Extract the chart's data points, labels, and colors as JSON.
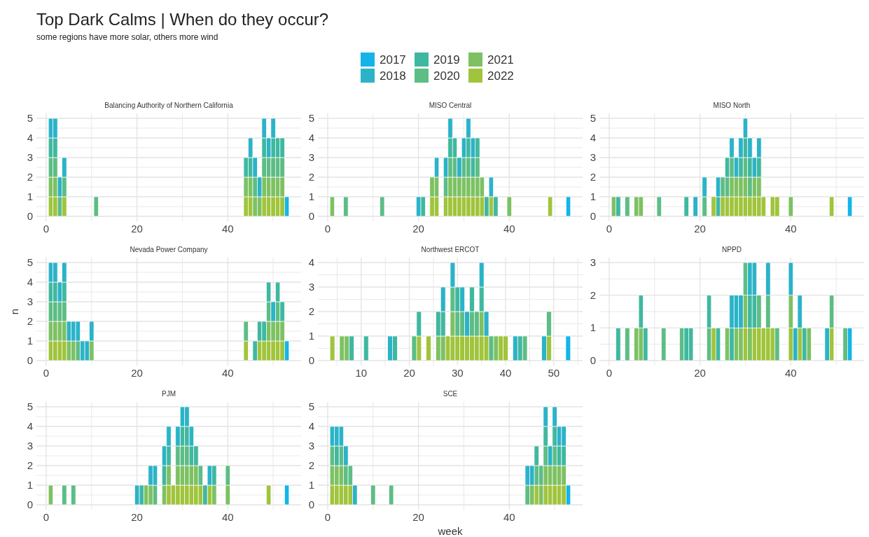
{
  "chart_data": [
    {
      "type": "bar",
      "stacked": true,
      "title": "Balancing Authority of Northern California",
      "annotations": [
        "Top Dark Calms | When do they occur?",
        "some regions have more solar, others more wind"
      ],
      "legend": "top",
      "grid": true,
      "x": [
        1,
        2,
        3,
        4,
        11,
        44,
        45,
        46,
        47,
        48,
        49,
        50,
        51,
        52,
        53
      ],
      "xlim": [
        -2.15,
        56.15
      ],
      "xticks": [
        0,
        {
          "value": 10,
          "label": null
        },
        20,
        {
          "value": 30,
          "label": null
        },
        40,
        {
          "value": 50,
          "label": null
        }
      ],
      "ylim": [
        -0.25,
        5.25
      ],
      "yticks": [
        0,
        {
          "value": 0.5,
          "label": null
        },
        1,
        {
          "value": 1.5,
          "label": null
        },
        2,
        {
          "value": 2.5,
          "label": null
        },
        3,
        {
          "value": 3.5,
          "label": null
        },
        4,
        {
          "value": 4.5,
          "label": null
        },
        5
      ],
      "series": [
        {
          "name": "2022",
          "color": "#a0c43c",
          "values": [
            1,
            1,
            0,
            1,
            0,
            1,
            1,
            0,
            0,
            1,
            1,
            1,
            1,
            1,
            0
          ]
        },
        {
          "name": "2021",
          "color": "#7dc163",
          "values": [
            1,
            1,
            0,
            0,
            0,
            1,
            1,
            1,
            1,
            1,
            1,
            1,
            1,
            1,
            0
          ]
        },
        {
          "name": "2020",
          "color": "#5dbd85",
          "values": [
            1,
            1,
            1,
            1,
            1,
            0,
            0,
            1,
            0,
            1,
            1,
            1,
            1,
            1,
            0
          ]
        },
        {
          "name": "2019",
          "color": "#40b8a0",
          "values": [
            1,
            1,
            0,
            0,
            0,
            1,
            1,
            0,
            0,
            1,
            0,
            1,
            1,
            1,
            0
          ]
        },
        {
          "name": "2018",
          "color": "#2bb3c8",
          "values": [
            1,
            1,
            1,
            1,
            0,
            0,
            1,
            1,
            1,
            1,
            1,
            1,
            0,
            0,
            0
          ]
        },
        {
          "name": "2017",
          "color": "#14b4e8",
          "values": [
            0,
            0,
            0,
            0,
            0,
            0,
            0,
            0,
            0,
            0,
            0,
            0,
            0,
            0,
            1
          ]
        }
      ]
    },
    {
      "type": "bar",
      "stacked": true,
      "title": "MISO Central",
      "grid": true,
      "x": [
        1,
        4,
        12,
        20,
        21,
        23,
        24,
        26,
        27,
        28,
        29,
        30,
        31,
        32,
        33,
        34,
        35,
        36,
        37,
        40,
        49,
        53
      ],
      "xlim": [
        -2.15,
        56.15
      ],
      "xticks": [
        0,
        {
          "value": 10,
          "label": null
        },
        20,
        {
          "value": 30,
          "label": null
        },
        40,
        {
          "value": 50,
          "label": null
        }
      ],
      "ylim": [
        -0.25,
        5.25
      ],
      "yticks": [
        0,
        {
          "value": 0.5,
          "label": null
        },
        1,
        {
          "value": 1.5,
          "label": null
        },
        2,
        {
          "value": 2.5,
          "label": null
        },
        3,
        {
          "value": 3.5,
          "label": null
        },
        4,
        {
          "value": 4.5,
          "label": null
        },
        5
      ],
      "series": [
        {
          "name": "2022",
          "color": "#a0c43c",
          "values": [
            0,
            0,
            0,
            0,
            0,
            1,
            1,
            1,
            1,
            1,
            1,
            1,
            1,
            1,
            1,
            1,
            0,
            1,
            0,
            0,
            1,
            0
          ]
        },
        {
          "name": "2021",
          "color": "#7dc163",
          "values": [
            1,
            0,
            0,
            0,
            0,
            1,
            1,
            0,
            1,
            1,
            1,
            1,
            1,
            1,
            1,
            1,
            0,
            0,
            0,
            1,
            0,
            0
          ]
        },
        {
          "name": "2020",
          "color": "#5dbd85",
          "values": [
            0,
            1,
            1,
            0,
            0,
            0,
            0,
            1,
            1,
            1,
            0,
            1,
            1,
            0,
            1,
            0,
            0,
            0,
            0,
            0,
            0,
            0
          ]
        },
        {
          "name": "2019",
          "color": "#40b8a0",
          "values": [
            0,
            0,
            0,
            0,
            1,
            0,
            0,
            0,
            1,
            1,
            0,
            0,
            1,
            1,
            1,
            0,
            1,
            0,
            1,
            0,
            0,
            0
          ]
        },
        {
          "name": "2018",
          "color": "#2bb3c8",
          "values": [
            0,
            0,
            0,
            1,
            0,
            0,
            1,
            1,
            1,
            0,
            1,
            1,
            1,
            1,
            0,
            0,
            0,
            1,
            0,
            0,
            0,
            0
          ]
        },
        {
          "name": "2017",
          "color": "#14b4e8",
          "values": [
            0,
            0,
            0,
            0,
            0,
            0,
            0,
            0,
            0,
            0,
            0,
            0,
            0,
            0,
            0,
            0,
            0,
            0,
            0,
            0,
            0,
            1
          ]
        }
      ]
    },
    {
      "type": "bar",
      "stacked": true,
      "title": "MISO North",
      "grid": true,
      "x": [
        1,
        2,
        4,
        6,
        7,
        11,
        17,
        19,
        21,
        23,
        24,
        25,
        26,
        27,
        28,
        29,
        30,
        31,
        32,
        33,
        34,
        36,
        37,
        40,
        49,
        53
      ],
      "xlim": [
        -2.15,
        56.15
      ],
      "xticks": [
        0,
        {
          "value": 10,
          "label": null
        },
        20,
        {
          "value": 30,
          "label": null
        },
        40,
        {
          "value": 50,
          "label": null
        }
      ],
      "ylim": [
        -0.25,
        5.25
      ],
      "yticks": [
        0,
        {
          "value": 0.5,
          "label": null
        },
        1,
        {
          "value": 1.5,
          "label": null
        },
        2,
        {
          "value": 2.5,
          "label": null
        },
        3,
        {
          "value": 3.5,
          "label": null
        },
        4,
        {
          "value": 4.5,
          "label": null
        },
        5
      ],
      "series": [
        {
          "name": "2022",
          "color": "#a0c43c",
          "values": [
            0,
            0,
            0,
            0,
            0,
            0,
            0,
            0,
            0,
            1,
            0,
            1,
            1,
            1,
            1,
            1,
            1,
            1,
            1,
            1,
            1,
            1,
            1,
            0,
            1,
            0
          ]
        },
        {
          "name": "2021",
          "color": "#7dc163",
          "values": [
            1,
            0,
            0,
            1,
            1,
            0,
            0,
            0,
            0,
            0,
            0,
            0,
            0,
            1,
            1,
            1,
            1,
            0,
            1,
            1,
            0,
            0,
            0,
            1,
            0,
            0
          ]
        },
        {
          "name": "2020",
          "color": "#5dbd85",
          "values": [
            0,
            0,
            1,
            0,
            0,
            1,
            0,
            0,
            1,
            0,
            0,
            1,
            1,
            1,
            0,
            0,
            1,
            1,
            0,
            0,
            0,
            0,
            0,
            0,
            0,
            0
          ]
        },
        {
          "name": "2019",
          "color": "#40b8a0",
          "values": [
            0,
            1,
            0,
            0,
            0,
            0,
            1,
            0,
            0,
            0,
            1,
            0,
            1,
            0,
            0,
            1,
            1,
            1,
            0,
            1,
            0,
            0,
            0,
            0,
            0,
            0
          ]
        },
        {
          "name": "2018",
          "color": "#2bb3c8",
          "values": [
            0,
            0,
            0,
            0,
            0,
            0,
            0,
            1,
            1,
            0,
            1,
            0,
            0,
            1,
            1,
            1,
            1,
            1,
            1,
            1,
            0,
            0,
            0,
            0,
            0,
            0
          ]
        },
        {
          "name": "2017",
          "color": "#14b4e8",
          "values": [
            0,
            0,
            0,
            0,
            0,
            0,
            0,
            0,
            0,
            0,
            0,
            0,
            0,
            0,
            0,
            0,
            0,
            0,
            0,
            0,
            0,
            0,
            0,
            0,
            0,
            1
          ]
        }
      ]
    },
    {
      "type": "bar",
      "stacked": true,
      "title": "Nevada Power Company",
      "ylabel": "n",
      "grid": true,
      "x": [
        1,
        2,
        3,
        4,
        5,
        6,
        7,
        8,
        9,
        10,
        44,
        46,
        47,
        48,
        49,
        50,
        51,
        52,
        53
      ],
      "xlim": [
        -2.15,
        56.15
      ],
      "xticks": [
        0,
        {
          "value": 10,
          "label": null
        },
        20,
        {
          "value": 30,
          "label": null
        },
        40,
        {
          "value": 50,
          "label": null
        }
      ],
      "ylim": [
        -0.25,
        5.25
      ],
      "yticks": [
        0,
        {
          "value": 0.5,
          "label": null
        },
        1,
        {
          "value": 1.5,
          "label": null
        },
        2,
        {
          "value": 2.5,
          "label": null
        },
        3,
        {
          "value": 3.5,
          "label": null
        },
        4,
        {
          "value": 4.5,
          "label": null
        },
        5
      ],
      "series": [
        {
          "name": "2022",
          "color": "#a0c43c",
          "values": [
            1,
            1,
            1,
            1,
            0,
            0,
            0,
            0,
            0,
            0,
            1,
            0,
            1,
            1,
            1,
            1,
            1,
            1,
            0
          ]
        },
        {
          "name": "2021",
          "color": "#7dc163",
          "values": [
            1,
            1,
            1,
            1,
            1,
            1,
            0,
            0,
            0,
            1,
            0,
            0,
            0,
            0,
            1,
            1,
            1,
            1,
            0
          ]
        },
        {
          "name": "2020",
          "color": "#5dbd85",
          "values": [
            1,
            1,
            1,
            1,
            0,
            0,
            1,
            0,
            0,
            0,
            1,
            0,
            0,
            0,
            1,
            0,
            1,
            0,
            0
          ]
        },
        {
          "name": "2019",
          "color": "#40b8a0",
          "values": [
            1,
            1,
            0,
            1,
            0,
            0,
            0,
            0,
            0,
            0,
            0,
            1,
            1,
            1,
            1,
            0,
            1,
            1,
            0
          ]
        },
        {
          "name": "2018",
          "color": "#2bb3c8",
          "values": [
            1,
            1,
            1,
            1,
            1,
            1,
            1,
            1,
            1,
            1,
            0,
            0,
            0,
            0,
            0,
            1,
            0,
            0,
            0
          ]
        },
        {
          "name": "2017",
          "color": "#14b4e8",
          "values": [
            0,
            0,
            0,
            0,
            0,
            0,
            0,
            0,
            0,
            0,
            0,
            0,
            0,
            0,
            0,
            0,
            0,
            0,
            1
          ]
        }
      ]
    },
    {
      "type": "bar",
      "stacked": true,
      "title": "Northwest ERCOT",
      "grid": true,
      "x": [
        4,
        6,
        7,
        8,
        11,
        16,
        17,
        21,
        22,
        24,
        26,
        27,
        28,
        29,
        30,
        31,
        32,
        33,
        34,
        35,
        36,
        37,
        38,
        39,
        40,
        42,
        43,
        44,
        48,
        49,
        53
      ],
      "xlim": [
        1,
        56
      ],
      "xticks": [
        {
          "value": 5,
          "label": null
        },
        10,
        {
          "value": 15,
          "label": null
        },
        20,
        {
          "value": 25,
          "label": null
        },
        30,
        {
          "value": 35,
          "label": null
        },
        40,
        {
          "value": 45,
          "label": null
        },
        50,
        {
          "value": 55,
          "label": null
        }
      ],
      "ylim": [
        -0.2,
        4.2
      ],
      "yticks": [
        0,
        {
          "value": 0.5,
          "label": null
        },
        1,
        {
          "value": 1.5,
          "label": null
        },
        2,
        {
          "value": 2.5,
          "label": null
        },
        3,
        {
          "value": 3.5,
          "label": null
        },
        4
      ],
      "series": [
        {
          "name": "2022",
          "color": "#a0c43c",
          "values": [
            1,
            0,
            0,
            0,
            0,
            0,
            0,
            0,
            1,
            1,
            0,
            0,
            1,
            1,
            1,
            1,
            1,
            1,
            1,
            1,
            1,
            0,
            0,
            1,
            1,
            0,
            0,
            0,
            0,
            1,
            0
          ]
        },
        {
          "name": "2021",
          "color": "#7dc163",
          "values": [
            0,
            1,
            1,
            0,
            0,
            0,
            0,
            0,
            0,
            0,
            1,
            1,
            0,
            1,
            0,
            0,
            0,
            0,
            0,
            1,
            0,
            0,
            1,
            0,
            0,
            0,
            0,
            0,
            0,
            0,
            0
          ]
        },
        {
          "name": "2020",
          "color": "#5dbd85",
          "values": [
            0,
            0,
            0,
            0,
            0,
            0,
            0,
            1,
            0,
            0,
            0,
            0,
            0,
            1,
            1,
            1,
            0,
            1,
            1,
            0,
            0,
            1,
            0,
            0,
            0,
            0,
            0,
            1,
            0,
            1,
            0
          ]
        },
        {
          "name": "2019",
          "color": "#40b8a0",
          "values": [
            0,
            0,
            0,
            1,
            1,
            0,
            1,
            0,
            1,
            0,
            1,
            1,
            0,
            0,
            1,
            0,
            0,
            1,
            0,
            1,
            0,
            0,
            0,
            0,
            0,
            0,
            1,
            0,
            0,
            0,
            0
          ]
        },
        {
          "name": "2018",
          "color": "#2bb3c8",
          "values": [
            0,
            0,
            0,
            0,
            0,
            1,
            0,
            0,
            0,
            0,
            0,
            1,
            0,
            1,
            0,
            1,
            1,
            0,
            0,
            1,
            1,
            0,
            0,
            0,
            0,
            1,
            0,
            0,
            1,
            0,
            0
          ]
        },
        {
          "name": "2017",
          "color": "#14b4e8",
          "values": [
            0,
            0,
            0,
            0,
            0,
            0,
            0,
            0,
            0,
            0,
            0,
            0,
            0,
            0,
            0,
            0,
            0,
            0,
            0,
            0,
            0,
            0,
            0,
            0,
            0,
            0,
            0,
            0,
            0,
            0,
            1
          ]
        }
      ]
    },
    {
      "type": "bar",
      "stacked": true,
      "title": "NPPD",
      "grid": true,
      "x": [
        2,
        4,
        6,
        7,
        8,
        12,
        16,
        17,
        18,
        22,
        23,
        24,
        26,
        27,
        28,
        29,
        30,
        31,
        32,
        33,
        34,
        35,
        36,
        37,
        40,
        41,
        42,
        43,
        44,
        48,
        49,
        52,
        53
      ],
      "xlim": [
        -2.15,
        56.15
      ],
      "xticks": [
        0,
        {
          "value": 10,
          "label": null
        },
        20,
        {
          "value": 30,
          "label": null
        },
        40,
        {
          "value": 50,
          "label": null
        }
      ],
      "ylim": [
        -0.15,
        3.15
      ],
      "yticks": [
        0,
        {
          "value": 0.5,
          "label": null
        },
        1,
        {
          "value": 1.5,
          "label": null
        },
        2,
        {
          "value": 2.5,
          "label": null
        },
        3
      ],
      "series": [
        {
          "name": "2022",
          "color": "#a0c43c",
          "values": [
            0,
            0,
            0,
            0,
            0,
            0,
            0,
            0,
            0,
            0,
            1,
            0,
            0,
            0,
            0,
            0,
            1,
            0,
            1,
            1,
            1,
            1,
            1,
            0,
            1,
            0,
            1,
            0,
            0,
            0,
            1,
            0,
            0
          ]
        },
        {
          "name": "2021",
          "color": "#7dc163",
          "values": [
            0,
            0,
            1,
            1,
            0,
            0,
            0,
            0,
            0,
            0,
            0,
            0,
            1,
            0,
            1,
            1,
            1,
            1,
            0,
            0,
            0,
            0,
            0,
            0,
            1,
            0,
            0,
            0,
            1,
            0,
            0,
            0,
            0
          ]
        },
        {
          "name": "2020",
          "color": "#5dbd85",
          "values": [
            0,
            1,
            0,
            0,
            0,
            1,
            1,
            0,
            0,
            1,
            0,
            0,
            0,
            0,
            0,
            0,
            1,
            0,
            0,
            1,
            0,
            1,
            0,
            1,
            0,
            0,
            0,
            0,
            0,
            0,
            1,
            1,
            0
          ]
        },
        {
          "name": "2019",
          "color": "#40b8a0",
          "values": [
            1,
            0,
            0,
            1,
            1,
            0,
            0,
            1,
            1,
            1,
            0,
            1,
            0,
            1,
            0,
            0,
            0,
            1,
            1,
            0,
            0,
            0,
            0,
            0,
            0,
            0,
            0,
            1,
            0,
            0,
            0,
            0,
            0
          ]
        },
        {
          "name": "2018",
          "color": "#2bb3c8",
          "values": [
            0,
            0,
            0,
            0,
            0,
            0,
            0,
            0,
            0,
            0,
            0,
            0,
            0,
            1,
            1,
            1,
            0,
            1,
            1,
            0,
            0,
            1,
            0,
            0,
            1,
            1,
            1,
            0,
            0,
            1,
            0,
            0,
            0
          ]
        },
        {
          "name": "2017",
          "color": "#14b4e8",
          "values": [
            0,
            0,
            0,
            0,
            0,
            0,
            0,
            0,
            0,
            0,
            0,
            0,
            0,
            0,
            0,
            0,
            0,
            0,
            0,
            0,
            0,
            0,
            0,
            0,
            0,
            0,
            0,
            0,
            0,
            0,
            0,
            0,
            1
          ]
        }
      ]
    },
    {
      "type": "bar",
      "stacked": true,
      "title": "PJM",
      "grid": true,
      "x": [
        1,
        4,
        6,
        20,
        21,
        22,
        23,
        24,
        26,
        27,
        28,
        29,
        30,
        31,
        32,
        33,
        34,
        35,
        36,
        37,
        40,
        49,
        53
      ],
      "xlim": [
        -2.15,
        56.15
      ],
      "xticks": [
        0,
        {
          "value": 10,
          "label": null
        },
        20,
        {
          "value": 30,
          "label": null
        },
        40,
        {
          "value": 50,
          "label": null
        }
      ],
      "ylim": [
        -0.25,
        5.25
      ],
      "yticks": [
        0,
        {
          "value": 0.5,
          "label": null
        },
        1,
        {
          "value": 1.5,
          "label": null
        },
        2,
        {
          "value": 2.5,
          "label": null
        },
        3,
        {
          "value": 3.5,
          "label": null
        },
        4,
        {
          "value": 4.5,
          "label": null
        },
        5
      ],
      "series": [
        {
          "name": "2022",
          "color": "#a0c43c",
          "values": [
            0,
            0,
            0,
            0,
            0,
            0,
            0,
            0,
            0,
            1,
            1,
            1,
            1,
            1,
            1,
            1,
            1,
            0,
            1,
            0,
            0,
            1,
            0
          ]
        },
        {
          "name": "2021",
          "color": "#7dc163",
          "values": [
            1,
            0,
            0,
            0,
            0,
            1,
            1,
            0,
            1,
            1,
            0,
            1,
            1,
            1,
            1,
            1,
            0,
            0,
            0,
            1,
            1,
            0,
            0
          ]
        },
        {
          "name": "2020",
          "color": "#5dbd85",
          "values": [
            0,
            1,
            1,
            0,
            0,
            0,
            0,
            1,
            0,
            0,
            0,
            1,
            1,
            1,
            0,
            0,
            1,
            0,
            0,
            0,
            1,
            0,
            0
          ]
        },
        {
          "name": "2019",
          "color": "#40b8a0",
          "values": [
            0,
            0,
            0,
            0,
            1,
            0,
            0,
            0,
            1,
            1,
            0,
            0,
            1,
            1,
            1,
            1,
            0,
            1,
            0,
            1,
            0,
            0,
            0
          ]
        },
        {
          "name": "2018",
          "color": "#2bb3c8",
          "values": [
            0,
            0,
            0,
            1,
            0,
            0,
            1,
            1,
            1,
            1,
            0,
            1,
            1,
            1,
            1,
            0,
            0,
            0,
            1,
            0,
            0,
            0,
            0
          ]
        },
        {
          "name": "2017",
          "color": "#14b4e8",
          "values": [
            0,
            0,
            0,
            0,
            0,
            0,
            0,
            0,
            0,
            0,
            0,
            0,
            0,
            0,
            0,
            0,
            0,
            0,
            0,
            0,
            0,
            0,
            1
          ]
        }
      ]
    },
    {
      "type": "bar",
      "stacked": true,
      "title": "SCE",
      "xlabel": "week",
      "grid": true,
      "x": [
        1,
        2,
        3,
        4,
        5,
        6,
        10,
        14,
        44,
        45,
        46,
        47,
        48,
        49,
        50,
        51,
        52,
        53
      ],
      "xlim": [
        -2.15,
        56.15
      ],
      "xticks": [
        0,
        {
          "value": 10,
          "label": null
        },
        20,
        {
          "value": 30,
          "label": null
        },
        40,
        {
          "value": 50,
          "label": null
        }
      ],
      "ylim": [
        -0.25,
        5.25
      ],
      "yticks": [
        0,
        {
          "value": 0.5,
          "label": null
        },
        1,
        {
          "value": 1.5,
          "label": null
        },
        2,
        {
          "value": 2.5,
          "label": null
        },
        3,
        {
          "value": 3.5,
          "label": null
        },
        4,
        {
          "value": 4.5,
          "label": null
        },
        5
      ],
      "series": [
        {
          "name": "2022",
          "color": "#a0c43c",
          "values": [
            1,
            1,
            1,
            1,
            1,
            0,
            0,
            0,
            0,
            0,
            1,
            0,
            1,
            1,
            1,
            1,
            1,
            0
          ]
        },
        {
          "name": "2021",
          "color": "#7dc163",
          "values": [
            1,
            1,
            1,
            0,
            0,
            0,
            0,
            0,
            0,
            1,
            0,
            1,
            1,
            1,
            1,
            1,
            1,
            0
          ]
        },
        {
          "name": "2020",
          "color": "#5dbd85",
          "values": [
            1,
            0,
            1,
            1,
            1,
            0,
            1,
            1,
            1,
            0,
            1,
            1,
            1,
            0,
            1,
            0,
            0,
            0
          ]
        },
        {
          "name": "2019",
          "color": "#40b8a0",
          "values": [
            0,
            1,
            0,
            0,
            0,
            0,
            0,
            0,
            0,
            0,
            1,
            0,
            1,
            0,
            1,
            1,
            1,
            0
          ]
        },
        {
          "name": "2018",
          "color": "#2bb3c8",
          "values": [
            1,
            1,
            1,
            1,
            0,
            1,
            0,
            0,
            1,
            1,
            0,
            0,
            1,
            1,
            1,
            1,
            1,
            0
          ]
        },
        {
          "name": "2017",
          "color": "#14b4e8",
          "values": [
            0,
            0,
            0,
            0,
            0,
            0,
            0,
            0,
            0,
            0,
            0,
            0,
            0,
            0,
            0,
            0,
            0,
            1
          ]
        }
      ]
    }
  ]
}
